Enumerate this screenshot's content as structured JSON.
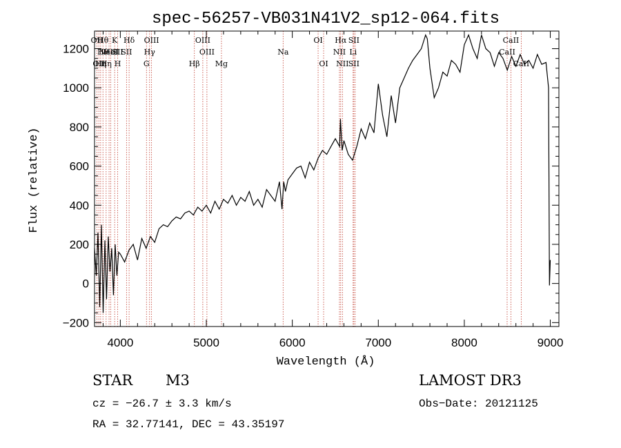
{
  "chart_data": {
    "type": "line",
    "title": "spec-56257-VB031N41V2_sp12-064.fits",
    "xlabel": "Wavelength (Å)",
    "ylabel": "Flux (relative)",
    "xlim": [
      3700,
      9100
    ],
    "ylim": [
      -220,
      1290
    ],
    "x_ticks": [
      4000,
      5000,
      6000,
      7000,
      8000,
      9000
    ],
    "x_tick_labels": [
      "4000",
      "5000",
      "6000",
      "7000",
      "8000",
      "9000"
    ],
    "y_ticks": [
      -200,
      0,
      200,
      400,
      600,
      800,
      1000,
      1200
    ],
    "y_tick_labels": [
      "−200",
      "0",
      "200",
      "400",
      "600",
      "800",
      "1000",
      "1200"
    ],
    "grid": false,
    "series": [
      {
        "name": "flux",
        "color": "#000000",
        "x": [
          3700,
          3720,
          3740,
          3760,
          3780,
          3800,
          3820,
          3840,
          3860,
          3880,
          3900,
          3920,
          3940,
          3960,
          3980,
          4000,
          4050,
          4100,
          4150,
          4200,
          4250,
          4300,
          4350,
          4400,
          4450,
          4500,
          4550,
          4600,
          4650,
          4700,
          4750,
          4800,
          4850,
          4900,
          4950,
          5000,
          5050,
          5100,
          5150,
          5200,
          5250,
          5300,
          5350,
          5400,
          5450,
          5500,
          5550,
          5600,
          5650,
          5700,
          5750,
          5800,
          5850,
          5880,
          5900,
          5920,
          5950,
          6000,
          6050,
          6100,
          6150,
          6200,
          6250,
          6300,
          6350,
          6400,
          6450,
          6500,
          6550,
          6560,
          6580,
          6600,
          6650,
          6700,
          6750,
          6800,
          6850,
          6900,
          6950,
          7000,
          7050,
          7100,
          7150,
          7200,
          7250,
          7300,
          7350,
          7400,
          7450,
          7500,
          7550,
          7570,
          7600,
          7650,
          7700,
          7750,
          7800,
          7850,
          7900,
          7950,
          8000,
          8050,
          8100,
          8150,
          8200,
          8250,
          8300,
          8350,
          8400,
          8450,
          8500,
          8550,
          8600,
          8650,
          8700,
          8750,
          8800,
          8850,
          8900,
          8950,
          8980,
          8990,
          9000
        ],
        "y": [
          180,
          40,
          260,
          -120,
          300,
          -150,
          220,
          -80,
          240,
          60,
          180,
          -60,
          200,
          40,
          160,
          150,
          110,
          170,
          200,
          120,
          230,
          180,
          240,
          210,
          280,
          300,
          290,
          320,
          340,
          330,
          360,
          370,
          350,
          390,
          370,
          400,
          360,
          420,
          380,
          430,
          410,
          450,
          400,
          440,
          420,
          470,
          400,
          430,
          390,
          480,
          450,
          420,
          520,
          380,
          520,
          470,
          530,
          560,
          590,
          600,
          540,
          620,
          580,
          640,
          680,
          660,
          700,
          740,
          700,
          840,
          680,
          730,
          660,
          630,
          700,
          790,
          740,
          820,
          770,
          1020,
          860,
          750,
          960,
          820,
          1000,
          1050,
          1100,
          1140,
          1170,
          1200,
          1270,
          1250,
          1100,
          950,
          1000,
          1080,
          1060,
          1140,
          1120,
          1080,
          1220,
          1270,
          1200,
          1150,
          1270,
          1200,
          1180,
          1110,
          1180,
          1150,
          1090,
          1160,
          1110,
          1170,
          1120,
          1140,
          1100,
          1170,
          1120,
          1130,
          1000,
          -10,
          120
        ]
      }
    ],
    "line_markers": [
      {
        "wavelength": 3727,
        "labels": [
          "OII"
        ]
      },
      {
        "wavelength": 3750,
        "labels": [
          "",
          "",
          "OII"
        ]
      },
      {
        "wavelength": 3771,
        "labels": [
          "",
          "",
          "Hη"
        ]
      },
      {
        "wavelength": 3798,
        "labels": [
          "Hθ",
          "Hθ"
        ]
      },
      {
        "wavelength": 3835,
        "labels": [
          "",
          "",
          "Hη"
        ]
      },
      {
        "wavelength": 3869,
        "labels": [
          "",
          "NeIII"
        ]
      },
      {
        "wavelength": 3889,
        "labels": [
          "",
          "HeI"
        ]
      },
      {
        "wavelength": 3934,
        "labels": [
          "K"
        ]
      },
      {
        "wavelength": 3969,
        "labels": [
          "",
          "SII",
          "H"
        ]
      },
      {
        "wavelength": 4072,
        "labels": [
          "",
          "SII"
        ]
      },
      {
        "wavelength": 4102,
        "labels": [
          "Hδ"
        ]
      },
      {
        "wavelength": 4304,
        "labels": [
          "",
          "",
          "G"
        ]
      },
      {
        "wavelength": 4340,
        "labels": [
          "",
          "Hγ"
        ]
      },
      {
        "wavelength": 4363,
        "labels": [
          "OIII"
        ]
      },
      {
        "wavelength": 4861,
        "labels": [
          "",
          "",
          "Hβ"
        ]
      },
      {
        "wavelength": 4959,
        "labels": [
          "OIII"
        ]
      },
      {
        "wavelength": 5007,
        "labels": [
          "",
          "OIII"
        ]
      },
      {
        "wavelength": 5176,
        "labels": [
          "",
          "",
          "Mg"
        ]
      },
      {
        "wavelength": 5893,
        "labels": [
          "",
          "Na"
        ]
      },
      {
        "wavelength": 6300,
        "labels": [
          "OI"
        ]
      },
      {
        "wavelength": 6364,
        "labels": [
          "",
          "",
          "OI"
        ]
      },
      {
        "wavelength": 6548,
        "labels": [
          "",
          "NII"
        ]
      },
      {
        "wavelength": 6563,
        "labels": [
          "Hα"
        ]
      },
      {
        "wavelength": 6583,
        "labels": [
          "",
          "",
          "NII"
        ]
      },
      {
        "wavelength": 6707,
        "labels": [
          "",
          "Li"
        ]
      },
      {
        "wavelength": 6716,
        "labels": [
          "SII",
          "",
          "SII"
        ]
      },
      {
        "wavelength": 6731,
        "labels": []
      },
      {
        "wavelength": 8498,
        "labels": [
          "",
          "CaII"
        ]
      },
      {
        "wavelength": 8542,
        "labels": [
          "CaII"
        ]
      },
      {
        "wavelength": 8662,
        "labels": [
          "",
          "",
          "CaII"
        ]
      }
    ]
  },
  "info": {
    "class_label": "STAR",
    "subclass": "M3",
    "survey": "LAMOST DR3",
    "cz": "cz = −26.7 ± 3.3 km/s",
    "obs_date": "Obs−Date: 20121125",
    "coords": "RA =  32.77141, DEC =  43.35197"
  },
  "colors": {
    "marker_line": "#c0392b",
    "axis": "#000000",
    "background": "#ffffff"
  }
}
